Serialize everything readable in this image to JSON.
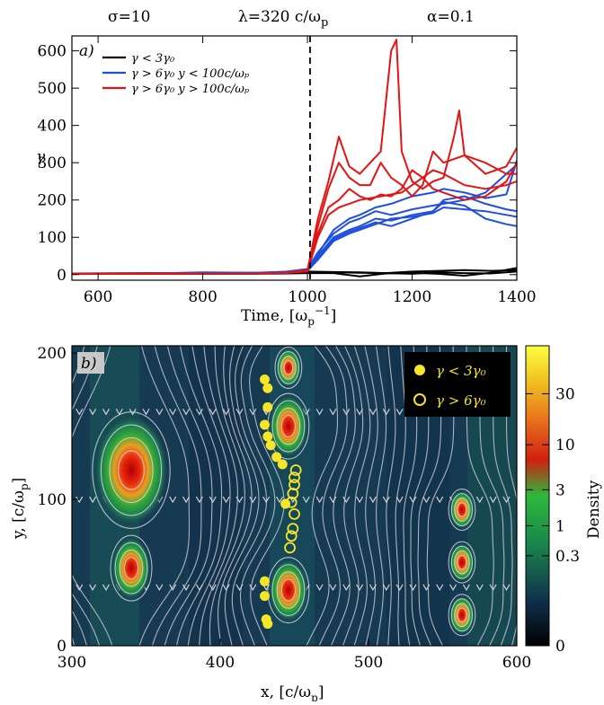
{
  "header": {
    "sigma": "σ=10",
    "lambda": "λ=320 c/ω",
    "lambda_sub": "p",
    "alpha": "α=0.1"
  },
  "chart_data": [
    {
      "type": "line",
      "panel_label": "a)",
      "xlabel": "Time, [ω",
      "xlabel_sub": "p",
      "xlabel_sup": "−1",
      "xlabel_end": "]",
      "ylabel": "γ",
      "xlim": [
        550,
        1400
      ],
      "ylim": [
        -15,
        640
      ],
      "xticks": [
        600,
        800,
        1000,
        1200,
        1400
      ],
      "yticks": [
        0,
        100,
        200,
        300,
        400,
        500,
        600
      ],
      "vline_x": 1005,
      "legend": [
        {
          "label": "γ < 3γ₀",
          "color": "#000000"
        },
        {
          "label": "γ > 6γ₀   y < 100c/ωₚ",
          "color": "#1f4fe0"
        },
        {
          "label": "γ > 6γ₀   y > 100c/ωₚ",
          "color": "#e41414"
        }
      ],
      "series": [
        {
          "group": "black",
          "color": "#000000",
          "x": [
            550,
            700,
            800,
            900,
            960,
            1000,
            1050,
            1100,
            1150,
            1200,
            1250,
            1300,
            1350,
            1400
          ],
          "y": [
            3,
            3,
            2,
            3,
            4,
            6,
            6,
            5,
            4,
            8,
            10,
            12,
            10,
            12
          ]
        },
        {
          "group": "black",
          "color": "#000000",
          "x": [
            550,
            700,
            800,
            900,
            960,
            1000,
            1050,
            1100,
            1150,
            1200,
            1250,
            1300,
            1350,
            1400
          ],
          "y": [
            2,
            2,
            3,
            2,
            3,
            4,
            4,
            -5,
            3,
            5,
            2,
            -3,
            5,
            18
          ]
        },
        {
          "group": "black",
          "color": "#000000",
          "x": [
            550,
            700,
            800,
            900,
            960,
            1000,
            1050,
            1100,
            1150,
            1200,
            1250,
            1300,
            1350,
            1400
          ],
          "y": [
            3,
            4,
            3,
            4,
            5,
            8,
            7,
            6,
            4,
            2,
            6,
            4,
            3,
            8
          ]
        },
        {
          "group": "blue",
          "color": "#1f4fe0",
          "x": [
            550,
            700,
            800,
            900,
            960,
            1000,
            1020,
            1050,
            1080,
            1100,
            1130,
            1160,
            1200,
            1240,
            1260,
            1300,
            1340,
            1380,
            1400
          ],
          "y": [
            3,
            3,
            6,
            5,
            8,
            15,
            60,
            110,
            140,
            150,
            170,
            160,
            175,
            185,
            190,
            200,
            220,
            270,
            295
          ]
        },
        {
          "group": "blue",
          "color": "#1f4fe0",
          "x": [
            550,
            700,
            800,
            900,
            960,
            1000,
            1020,
            1050,
            1080,
            1100,
            1130,
            1160,
            1200,
            1240,
            1260,
            1300,
            1340,
            1380,
            1400
          ],
          "y": [
            3,
            3,
            5,
            4,
            6,
            12,
            50,
            100,
            120,
            130,
            150,
            145,
            160,
            170,
            200,
            210,
            190,
            175,
            170
          ]
        },
        {
          "group": "blue",
          "color": "#1f4fe0",
          "x": [
            550,
            700,
            800,
            900,
            960,
            1000,
            1020,
            1050,
            1080,
            1100,
            1130,
            1160,
            1200,
            1240,
            1260,
            1300,
            1340,
            1380,
            1400
          ],
          "y": [
            3,
            3,
            4,
            5,
            5,
            10,
            40,
            90,
            110,
            120,
            135,
            150,
            155,
            165,
            180,
            175,
            170,
            160,
            155
          ]
        },
        {
          "group": "blue",
          "color": "#1f4fe0",
          "x": [
            550,
            700,
            800,
            900,
            960,
            1000,
            1020,
            1050,
            1080,
            1100,
            1130,
            1160,
            1200,
            1240,
            1260,
            1300,
            1340,
            1380,
            1400
          ],
          "y": [
            3,
            3,
            5,
            5,
            6,
            10,
            45,
            95,
            115,
            125,
            140,
            130,
            150,
            170,
            195,
            185,
            150,
            135,
            130
          ]
        },
        {
          "group": "blue",
          "color": "#1f4fe0",
          "x": [
            550,
            700,
            800,
            900,
            960,
            1000,
            1020,
            1050,
            1080,
            1100,
            1130,
            1160,
            1200,
            1240,
            1260,
            1300,
            1340,
            1380,
            1400
          ],
          "y": [
            3,
            3,
            4,
            4,
            5,
            9,
            55,
            120,
            150,
            160,
            180,
            190,
            210,
            220,
            230,
            220,
            205,
            215,
            305
          ]
        },
        {
          "group": "red",
          "color": "#e41414",
          "x": [
            550,
            700,
            800,
            900,
            960,
            1000,
            1020,
            1040,
            1060,
            1080,
            1100,
            1120,
            1140,
            1160,
            1170,
            1180,
            1200,
            1220,
            1240,
            1260,
            1280,
            1290,
            1300,
            1340,
            1380,
            1400
          ],
          "y": [
            2,
            2,
            3,
            3,
            5,
            12,
            150,
            250,
            370,
            290,
            270,
            300,
            330,
            600,
            630,
            330,
            250,
            230,
            250,
            260,
            370,
            440,
            320,
            270,
            290,
            340
          ]
        },
        {
          "group": "red",
          "color": "#e41414",
          "x": [
            550,
            700,
            800,
            900,
            960,
            1000,
            1020,
            1040,
            1060,
            1080,
            1100,
            1120,
            1140,
            1160,
            1180,
            1200,
            1220,
            1240,
            1260,
            1300,
            1340,
            1380,
            1400
          ],
          "y": [
            2,
            2,
            3,
            3,
            5,
            10,
            130,
            230,
            300,
            260,
            240,
            240,
            300,
            260,
            240,
            210,
            240,
            330,
            300,
            320,
            300,
            270,
            270
          ]
        },
        {
          "group": "red",
          "color": "#e41414",
          "x": [
            550,
            700,
            800,
            900,
            960,
            1000,
            1020,
            1040,
            1060,
            1080,
            1100,
            1120,
            1140,
            1160,
            1180,
            1200,
            1220,
            1240,
            1260,
            1300,
            1340,
            1380,
            1400
          ],
          "y": [
            2,
            2,
            3,
            3,
            5,
            10,
            110,
            180,
            200,
            230,
            210,
            200,
            215,
            210,
            230,
            280,
            260,
            230,
            220,
            200,
            210,
            250,
            300
          ]
        },
        {
          "group": "red",
          "color": "#e41414",
          "x": [
            550,
            700,
            800,
            900,
            960,
            1000,
            1020,
            1040,
            1060,
            1080,
            1100,
            1120,
            1140,
            1160,
            1180,
            1200,
            1220,
            1240,
            1260,
            1300,
            1340,
            1380,
            1400
          ],
          "y": [
            2,
            2,
            3,
            3,
            5,
            8,
            100,
            160,
            180,
            190,
            200,
            205,
            210,
            215,
            220,
            240,
            260,
            280,
            270,
            240,
            230,
            240,
            250
          ]
        }
      ]
    },
    {
      "type": "heatmap",
      "panel_label": "b)",
      "xlabel": "x, [c/ω",
      "xlabel_sub": "p",
      "xlabel_end": "]",
      "ylabel": "y, [c/ω",
      "ylabel_sub": "p",
      "ylabel_end": "]",
      "xlim": [
        300,
        600
      ],
      "ylim": [
        0,
        205
      ],
      "xticks": [
        300,
        400,
        500,
        600
      ],
      "yticks": [
        0,
        100,
        200
      ],
      "colorbar": {
        "label": "Density",
        "ticks": [
          "30",
          "10",
          "3",
          "1",
          "0.3",
          "0"
        ],
        "tick_values": [
          30,
          10,
          3,
          1,
          0.3,
          0
        ]
      },
      "legend": [
        {
          "label": "γ < 3γ₀",
          "marker": "filled-circle",
          "color": "#f5e62a"
        },
        {
          "label": "γ > 6γ₀",
          "marker": "open-circle",
          "color": "#f5e62a"
        }
      ],
      "islands": [
        {
          "x": 340,
          "y": 120,
          "size": "large"
        },
        {
          "x": 340,
          "y": 53,
          "size": "medium"
        },
        {
          "x": 446,
          "y": 150,
          "size": "medium"
        },
        {
          "x": 446,
          "y": 38,
          "size": "medium"
        },
        {
          "x": 446,
          "y": 190,
          "size": "small"
        },
        {
          "x": 563,
          "y": 93,
          "size": "small"
        },
        {
          "x": 563,
          "y": 57,
          "size": "small"
        },
        {
          "x": 563,
          "y": 21,
          "size": "small"
        }
      ],
      "filled_points": [
        [
          430,
          182
        ],
        [
          432,
          176
        ],
        [
          432,
          163
        ],
        [
          430,
          151
        ],
        [
          432,
          143
        ],
        [
          434,
          137
        ],
        [
          438,
          129
        ],
        [
          442,
          124
        ],
        [
          444,
          97
        ],
        [
          430,
          44
        ],
        [
          430,
          34
        ],
        [
          431,
          18
        ],
        [
          432,
          15
        ]
      ],
      "open_points": [
        [
          451,
          120
        ],
        [
          450,
          115
        ],
        [
          450,
          110
        ],
        [
          449,
          104
        ],
        [
          448,
          98
        ],
        [
          450,
          90
        ],
        [
          449,
          80
        ],
        [
          448,
          75
        ],
        [
          447,
          67
        ]
      ]
    }
  ]
}
